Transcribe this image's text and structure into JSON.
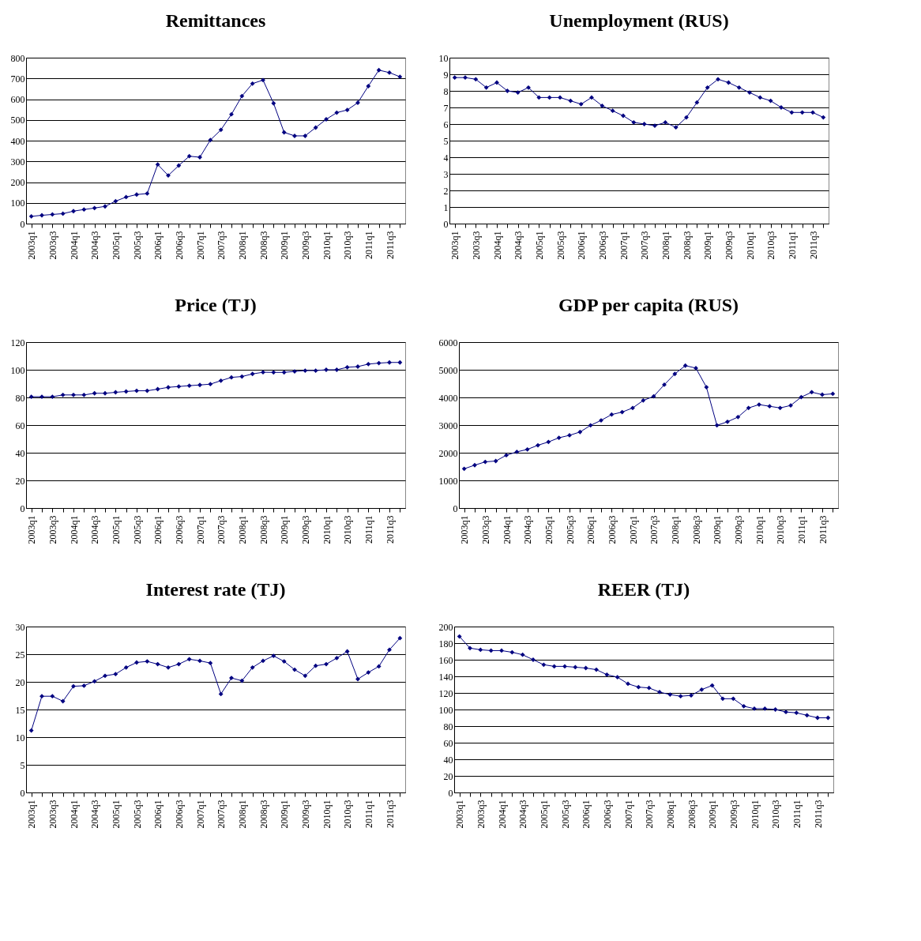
{
  "chart_data": [
    {
      "type": "line",
      "title": "Remittances",
      "categories": [
        "2003q1",
        null,
        "2003q3",
        null,
        "2004q1",
        null,
        "2004q3",
        null,
        "2005q1",
        null,
        "2005q3",
        null,
        "2006q1",
        null,
        "2006q3",
        null,
        "2007q1",
        null,
        "2007q3",
        null,
        "2008q1",
        null,
        "2008q3",
        null,
        "2009q1",
        null,
        "2009q3",
        null,
        "2010q1",
        null,
        "2010q3",
        null,
        "2011q1",
        null,
        "2011q3",
        null
      ],
      "color": "#000080",
      "marker": "diamond",
      "grid": "y",
      "ylim": [
        0,
        800
      ],
      "yticks": [
        0,
        100,
        200,
        300,
        400,
        500,
        600,
        700,
        800
      ],
      "values": [
        35,
        40,
        44,
        48,
        60,
        68,
        75,
        83,
        108,
        128,
        140,
        145,
        285,
        232,
        280,
        325,
        320,
        403,
        452,
        527,
        615,
        675,
        692,
        580,
        440,
        423,
        423,
        463,
        503,
        535,
        548,
        583,
        663,
        740,
        728,
        708
      ]
    },
    {
      "type": "line",
      "title": "Unemployment (RUS)",
      "categories": [
        "2003q1",
        null,
        "2003q3",
        null,
        "2004q1",
        null,
        "2004q3",
        null,
        "2005q1",
        null,
        "2005q3",
        null,
        "2006q1",
        null,
        "2006q3",
        null,
        "2007q1",
        null,
        "2007q3",
        null,
        "2008q1",
        null,
        "2008q3",
        null,
        "2009q1",
        null,
        "2009q3",
        null,
        "2010q1",
        null,
        "2010q3",
        null,
        "2011q1",
        null,
        "2011q3",
        null
      ],
      "color": "#000080",
      "marker": "diamond",
      "grid": "y",
      "ylim": [
        0,
        10
      ],
      "yticks": [
        0,
        1,
        2,
        3,
        4,
        5,
        6,
        7,
        8,
        9,
        10
      ],
      "values": [
        8.8,
        8.8,
        8.7,
        8.2,
        8.5,
        8.0,
        7.9,
        8.2,
        7.6,
        7.6,
        7.6,
        7.4,
        7.2,
        7.6,
        7.1,
        6.8,
        6.5,
        6.1,
        6.0,
        5.9,
        6.1,
        5.8,
        6.4,
        7.3,
        8.2,
        8.7,
        8.5,
        8.2,
        7.9,
        7.6,
        7.4,
        7.0,
        6.7,
        6.7,
        6.7,
        6.4
      ]
    },
    {
      "type": "line",
      "title": "Price (TJ)",
      "categories": [
        "2003q1",
        null,
        "2003q3",
        null,
        "2004q1",
        null,
        "2004q3",
        null,
        "2005q1",
        null,
        "2005q3",
        null,
        "2006q1",
        null,
        "2006q3",
        null,
        "2007q1",
        null,
        "2007q3",
        null,
        "2008q1",
        null,
        "2008q3",
        null,
        "2009q1",
        null,
        "2009q3",
        null,
        "2010q1",
        null,
        "2010q3",
        null,
        "2011q1",
        null,
        "2011q3",
        null
      ],
      "color": "#000080",
      "marker": "diamond",
      "grid": "y",
      "ylim": [
        0,
        120
      ],
      "yticks": [
        0,
        20,
        40,
        60,
        80,
        100,
        120
      ],
      "values": [
        80.5,
        80.5,
        80.5,
        81.8,
        81.8,
        81.8,
        83,
        83,
        83.7,
        84.3,
        84.8,
        84.8,
        86,
        87.3,
        87.9,
        88.5,
        89,
        89.6,
        92.1,
        94.5,
        95.1,
        97,
        98.2,
        98.1,
        98.1,
        98.8,
        99.4,
        99.4,
        100,
        100,
        101.8,
        102.3,
        104.1,
        104.8,
        105.3,
        105.3
      ]
    },
    {
      "type": "line",
      "title": "GDP per capita (RUS)",
      "categories": [
        "2003q1",
        null,
        "2003q3",
        null,
        "2004q1",
        null,
        "2004q3",
        null,
        "2005q1",
        null,
        "2005q3",
        null,
        "2006q1",
        null,
        "2006q3",
        null,
        "2007q1",
        null,
        "2007q3",
        null,
        "2008q1",
        null,
        "2008q3",
        null,
        "2009q1",
        null,
        "2009q3",
        null,
        "2010q1",
        null,
        "2010q3",
        null,
        "2011q1",
        null,
        "2011q3",
        null
      ],
      "color": "#000080",
      "marker": "diamond",
      "grid": "y",
      "ylim": [
        0,
        6000
      ],
      "yticks": [
        0,
        1000,
        2000,
        3000,
        4000,
        5000,
        6000
      ],
      "values": [
        1420,
        1550,
        1670,
        1700,
        1910,
        2030,
        2120,
        2270,
        2390,
        2540,
        2630,
        2750,
        2990,
        3170,
        3380,
        3470,
        3620,
        3890,
        4040,
        4460,
        4850,
        5150,
        5060,
        4370,
        2990,
        3120,
        3290,
        3620,
        3740,
        3680,
        3620,
        3710,
        4010,
        4190,
        4100,
        4130
      ]
    },
    {
      "type": "line",
      "title": "Interest rate (TJ)",
      "categories": [
        "2003q1",
        null,
        "2003q3",
        null,
        "2004q1",
        null,
        "2004q3",
        null,
        "2005q1",
        null,
        "2005q3",
        null,
        "2006q1",
        null,
        "2006q3",
        null,
        "2007q1",
        null,
        "2007q3",
        null,
        "2008q1",
        null,
        "2008q3",
        null,
        "2009q1",
        null,
        "2009q3",
        null,
        "2010q1",
        null,
        "2010q3",
        null,
        "2011q1",
        null,
        "2011q3",
        null
      ],
      "color": "#000080",
      "marker": "diamond",
      "grid": "y",
      "ylim": [
        0,
        30
      ],
      "yticks": [
        0,
        5,
        10,
        15,
        20,
        25,
        30
      ],
      "values": [
        11.2,
        17.4,
        17.4,
        16.5,
        19.2,
        19.3,
        20.1,
        21.1,
        21.4,
        22.6,
        23.5,
        23.7,
        23.2,
        22.6,
        23.2,
        24.1,
        23.8,
        23.4,
        17.8,
        20.7,
        20.2,
        22.6,
        23.8,
        24.7,
        23.7,
        22.2,
        21.1,
        22.9,
        23.2,
        24.3,
        25.5,
        20.5,
        21.7,
        22.8,
        25.8,
        27.9
      ]
    },
    {
      "type": "line",
      "title": "REER (TJ)",
      "categories": [
        "2003q1",
        null,
        "2003q3",
        null,
        "2004q1",
        null,
        "2004q3",
        null,
        "2005q1",
        null,
        "2005q3",
        null,
        "2006q1",
        null,
        "2006q3",
        null,
        "2007q1",
        null,
        "2007q3",
        null,
        "2008q1",
        null,
        "2008q3",
        null,
        "2009q1",
        null,
        "2009q3",
        null,
        "2010q1",
        null,
        "2010q3",
        null,
        "2011q1",
        null,
        "2011q3",
        null
      ],
      "color": "#000080",
      "marker": "diamond",
      "grid": "y",
      "ylim": [
        0,
        200
      ],
      "yticks": [
        0,
        20,
        40,
        60,
        80,
        100,
        120,
        140,
        160,
        180,
        200
      ],
      "values": [
        188,
        174,
        172,
        171,
        171,
        169,
        166,
        160,
        154,
        152,
        152,
        151,
        150,
        148,
        142,
        139,
        131,
        127,
        126,
        121,
        118,
        116,
        117,
        124,
        129,
        113,
        113,
        104,
        101,
        101,
        100,
        97,
        96,
        93,
        90,
        90
      ]
    }
  ]
}
